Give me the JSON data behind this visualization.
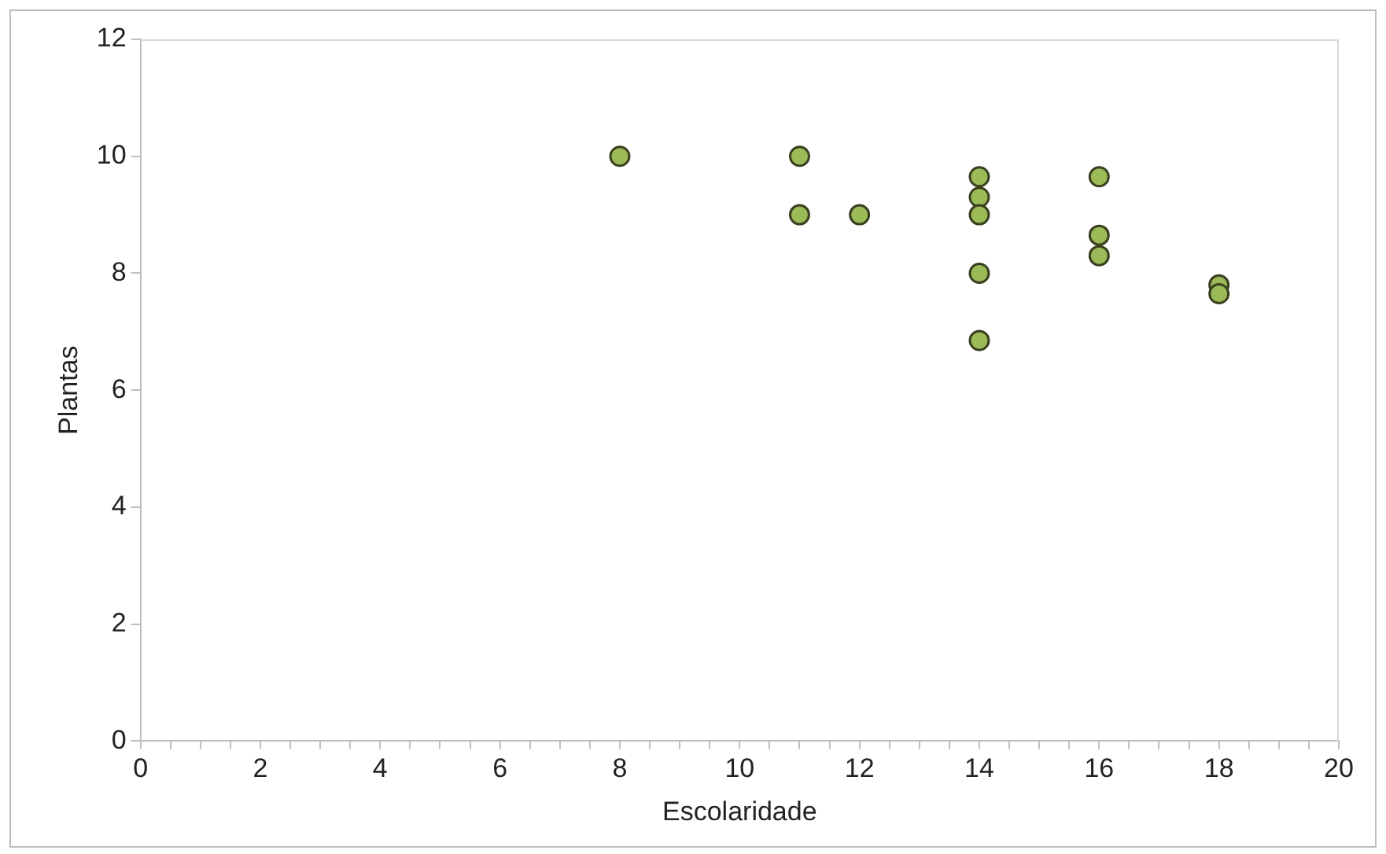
{
  "chart_data": {
    "type": "scatter",
    "xlabel": "Escolaridade",
    "ylabel": "Plantas",
    "x": [
      8,
      11,
      11,
      12,
      14,
      14,
      14,
      14,
      14,
      16,
      16,
      16,
      18,
      18
    ],
    "series": [
      {
        "color": "#9bbb59",
        "values": [
          10,
          10,
          9,
          9,
          9.65,
          9.3,
          9,
          8,
          6.85,
          9.65,
          8.65,
          8.3,
          7.8,
          7.65
        ]
      }
    ],
    "xlim": [
      0,
      20
    ],
    "xticks": [
      0,
      {
        "value": 0.5,
        "label": null
      },
      {
        "value": 1,
        "label": null
      },
      {
        "value": 1.5,
        "label": null
      },
      2,
      {
        "value": 2.5,
        "label": null
      },
      {
        "value": 3,
        "label": null
      },
      {
        "value": 3.5,
        "label": null
      },
      4,
      {
        "value": 4.5,
        "label": null
      },
      {
        "value": 5,
        "label": null
      },
      {
        "value": 5.5,
        "label": null
      },
      6,
      {
        "value": 6.5,
        "label": null
      },
      {
        "value": 7,
        "label": null
      },
      {
        "value": 7.5,
        "label": null
      },
      8,
      {
        "value": 8.5,
        "label": null
      },
      {
        "value": 9,
        "label": null
      },
      {
        "value": 9.5,
        "label": null
      },
      10,
      {
        "value": 10.5,
        "label": null
      },
      {
        "value": 11,
        "label": null
      },
      {
        "value": 11.5,
        "label": null
      },
      12,
      {
        "value": 12.5,
        "label": null
      },
      {
        "value": 13,
        "label": null
      },
      {
        "value": 13.5,
        "label": null
      },
      14,
      {
        "value": 14.5,
        "label": null
      },
      {
        "value": 15,
        "label": null
      },
      {
        "value": 15.5,
        "label": null
      },
      16,
      {
        "value": 16.5,
        "label": null
      },
      {
        "value": 17,
        "label": null
      },
      {
        "value": 17.5,
        "label": null
      },
      18,
      {
        "value": 18.5,
        "label": null
      },
      {
        "value": 19,
        "label": null
      },
      {
        "value": 19.5,
        "label": null
      },
      20
    ],
    "ylim": [
      0,
      12
    ],
    "yticks": [
      0,
      2,
      4,
      6,
      8,
      10,
      12
    ],
    "marker": "circle",
    "grid": false,
    "legend": false
  }
}
